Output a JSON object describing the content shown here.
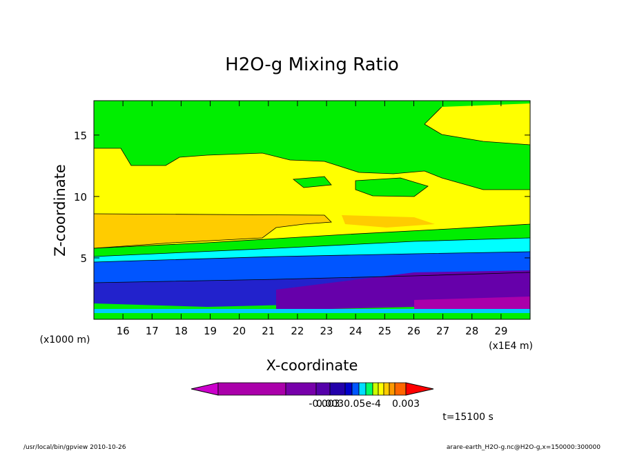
{
  "chart_data": {
    "type": "contour",
    "title": "H2O-g Mixing Ratio",
    "xlabel": "X-coordinate",
    "ylabel": "Z-coordinate",
    "x_unit": "(x1E4 m)",
    "y_unit": "(x1000 m)",
    "xlim": [
      15,
      30
    ],
    "ylim": [
      0,
      17.8
    ],
    "x_ticks": [
      16,
      17,
      18,
      19,
      20,
      21,
      22,
      23,
      24,
      25,
      26,
      27,
      28,
      29
    ],
    "y_ticks": [
      5,
      10,
      15
    ],
    "colorbar": {
      "labels": [
        "-0.003",
        "0.0030.05e-4",
        "0.003"
      ],
      "colors": [
        "#cc00cc",
        "#aa00aa",
        "#7700aa",
        "#5500aa",
        "#2200aa",
        "#0000cc",
        "#0055ff",
        "#00ddff",
        "#00ff66",
        "#ccff00",
        "#ffff00",
        "#ffcc00",
        "#ff9900",
        "#ff6600",
        "#ff0000"
      ]
    }
  },
  "footer": {
    "time": "t=15100 s",
    "path": "/usr/local/bin/gpview   2010-10-26",
    "source": "arare-earth_H2O-g.nc@H2O-g,x=150000:300000"
  }
}
